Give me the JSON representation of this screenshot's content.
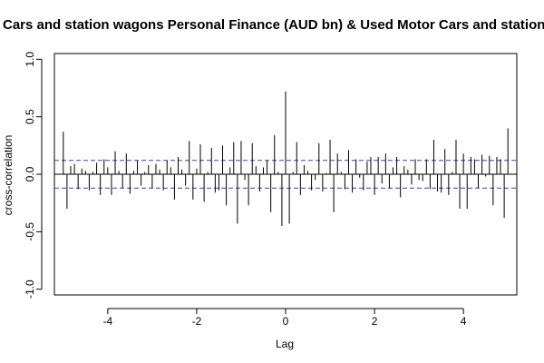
{
  "chart_data": {
    "type": "bar",
    "title": "Cars and station wagons Personal Finance (AUD bn) & Used Motor Cars and station wagons",
    "xlabel": "Lag",
    "ylabel": "cross-correlation",
    "xlim": [
      -5.2,
      5.2
    ],
    "ylim": [
      -1.05,
      1.05
    ],
    "xticks": [
      -4,
      -2,
      0,
      2,
      4
    ],
    "yticks": [
      -1.0,
      -0.5,
      0.0,
      0.5,
      1.0
    ],
    "xtick_labels": [
      "-4",
      "-2",
      "0",
      "2",
      "4"
    ],
    "ytick_labels": [
      "-1.0",
      "-0.5",
      "0.0",
      "0.5",
      "1.0"
    ],
    "ci_bounds": [
      0.12,
      -0.12
    ],
    "ci_color": "#3b3bd9",
    "grid": false,
    "x": [
      -5.0,
      -4.9167,
      -4.8333,
      -4.75,
      -4.6667,
      -4.5833,
      -4.5,
      -4.4167,
      -4.3333,
      -4.25,
      -4.1667,
      -4.0833,
      -4.0,
      -3.9167,
      -3.8333,
      -3.75,
      -3.6667,
      -3.5833,
      -3.5,
      -3.4167,
      -3.3333,
      -3.25,
      -3.1667,
      -3.0833,
      -3.0,
      -2.9167,
      -2.8333,
      -2.75,
      -2.6667,
      -2.5833,
      -2.5,
      -2.4167,
      -2.3333,
      -2.25,
      -2.1667,
      -2.0833,
      -2.0,
      -1.9167,
      -1.8333,
      -1.75,
      -1.6667,
      -1.5833,
      -1.5,
      -1.4167,
      -1.3333,
      -1.25,
      -1.1667,
      -1.0833,
      -1.0,
      -0.9167,
      -0.8333,
      -0.75,
      -0.6667,
      -0.5833,
      -0.5,
      -0.4167,
      -0.3333,
      -0.25,
      -0.1667,
      -0.0833,
      0.0,
      0.0833,
      0.1667,
      0.25,
      0.3333,
      0.4167,
      0.5,
      0.5833,
      0.6667,
      0.75,
      0.8333,
      0.9167,
      1.0,
      1.0833,
      1.1667,
      1.25,
      1.3333,
      1.4167,
      1.5,
      1.5833,
      1.6667,
      1.75,
      1.8333,
      1.9167,
      2.0,
      2.0833,
      2.1667,
      2.25,
      2.3333,
      2.4167,
      2.5,
      2.5833,
      2.6667,
      2.75,
      2.8333,
      2.9167,
      3.0,
      3.0833,
      3.1667,
      3.25,
      3.3333,
      3.4167,
      3.5,
      3.5833,
      3.6667,
      3.75,
      3.8333,
      3.9167,
      4.0,
      4.0833,
      4.1667,
      4.25,
      4.3333,
      4.4167,
      4.5,
      4.5833,
      4.6667,
      4.75,
      4.8333,
      4.9167,
      5.0
    ],
    "values": [
      0.37,
      -0.3,
      0.07,
      0.09,
      -0.13,
      0.05,
      0.03,
      -0.14,
      0.02,
      0.1,
      -0.18,
      0.13,
      0.06,
      -0.18,
      0.2,
      0.03,
      -0.12,
      0.18,
      -0.17,
      0.03,
      0.12,
      -0.1,
      0.02,
      0.08,
      -0.12,
      0.09,
      0.04,
      -0.14,
      0.12,
      0.06,
      -0.22,
      0.15,
      0.04,
      -0.1,
      0.29,
      -0.22,
      0.05,
      0.26,
      -0.24,
      0.02,
      0.23,
      -0.16,
      -0.14,
      0.25,
      -0.27,
      0.06,
      0.28,
      -0.43,
      0.29,
      -0.05,
      -0.27,
      0.27,
      0.07,
      -0.15,
      0.06,
      0.12,
      -0.33,
      0.34,
      0.02,
      -0.45,
      0.72,
      -0.43,
      0.02,
      0.28,
      -0.18,
      0.08,
      0.03,
      -0.14,
      -0.05,
      0.27,
      -0.15,
      0.01,
      0.3,
      -0.33,
      0.18,
      0.02,
      -0.13,
      0.21,
      -0.16,
      0.13,
      -0.03,
      -0.14,
      0.11,
      0.15,
      -0.18,
      0.15,
      -0.08,
      0.18,
      -0.12,
      0.06,
      0.15,
      -0.2,
      0.07,
      0.04,
      -0.09,
      0.13,
      -0.05,
      -0.06,
      0.13,
      -0.13,
      0.3,
      -0.15,
      -0.16,
      0.22,
      -0.18,
      0.02,
      0.3,
      -0.3,
      0.18,
      -0.3,
      0.15,
      0.13,
      -0.12,
      0.17,
      -0.02,
      0.16,
      -0.27,
      0.15,
      0.13,
      -0.38,
      0.4
    ]
  }
}
